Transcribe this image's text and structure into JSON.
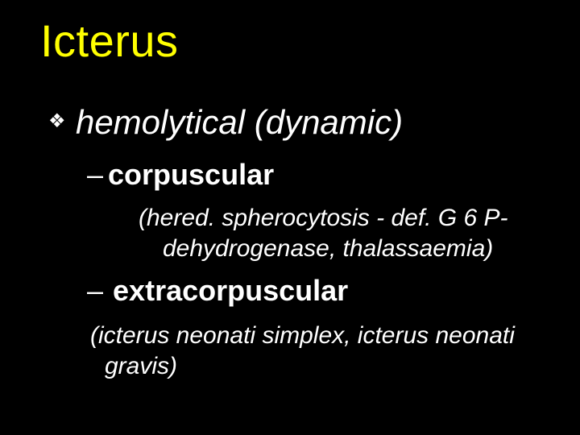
{
  "colors": {
    "background": "#000000",
    "title": "#ffff00",
    "body_text": "#ffffff"
  },
  "typography": {
    "family": "Arial",
    "title_size_pt": 42,
    "level1_size_pt": 32,
    "level2_size_pt": 27,
    "paren_size_pt": 22,
    "level1_style": "italic",
    "level2_weight": "bold",
    "paren_style": "italic"
  },
  "title": "Icterus",
  "bullet_glyph": "❖",
  "level1_text": "hemolytical (dynamic)",
  "item_a": {
    "dash": "–",
    "label": "corpuscular",
    "paren_line1": "(hered. spherocytosis - def. G 6 P-",
    "paren_line2": "dehydrogenase, thalassaemia)"
  },
  "item_b": {
    "dash": "–",
    "label": "extracorpuscular",
    "paren_line1": "(icterus neonati simplex, icterus neonati",
    "paren_line2": "gravis)"
  }
}
